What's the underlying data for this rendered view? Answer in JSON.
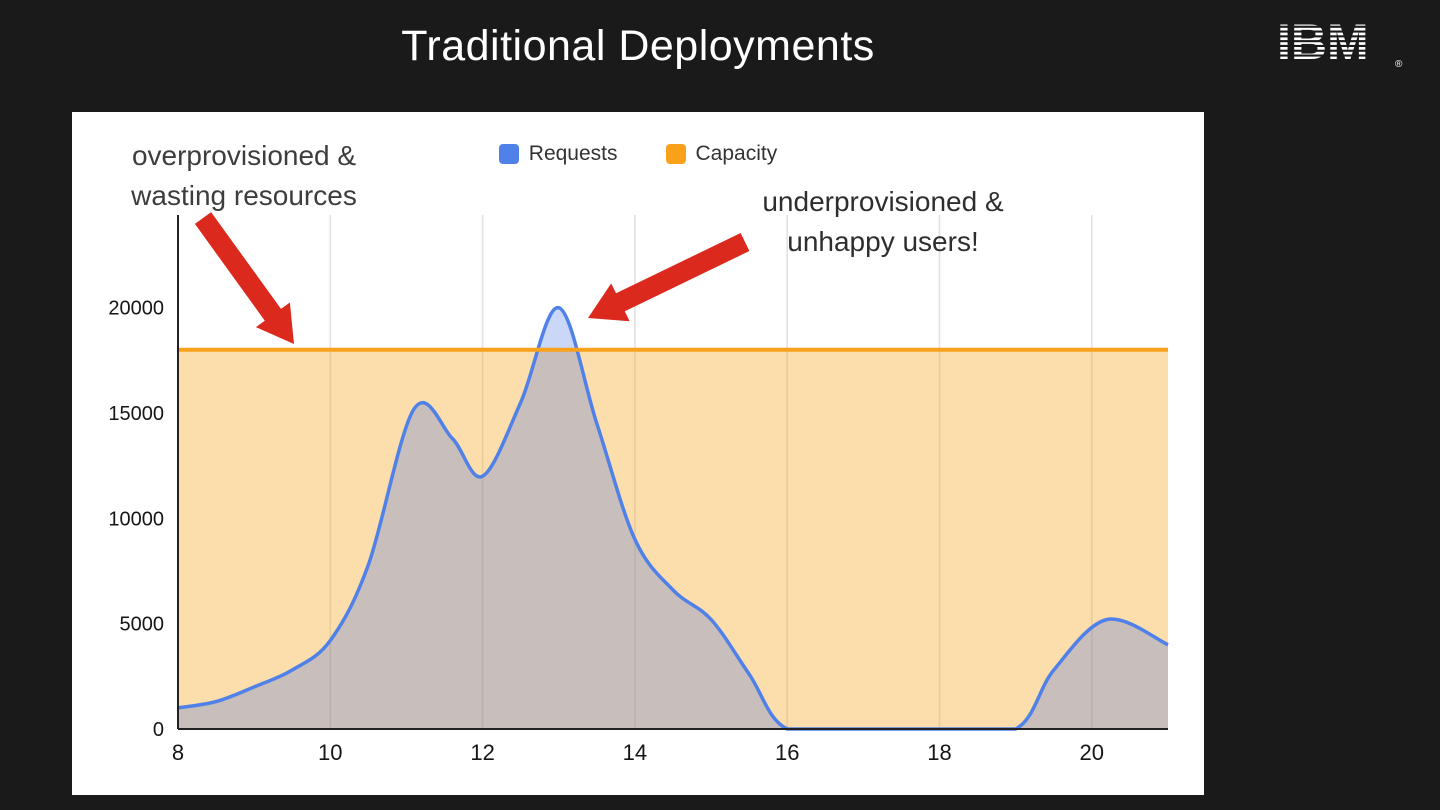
{
  "slide": {
    "title": "Traditional Deployments",
    "brand": "IBM",
    "brand_mark": "®"
  },
  "colors": {
    "slide_bg": "#1a1a1a",
    "panel_bg": "#ffffff",
    "arrow": "#dc291e",
    "requests_blue": "#4f81e8",
    "capacity_orange": "#f9a11b"
  },
  "chart_data": {
    "type": "area",
    "legend_position": "top",
    "grid": "vertical",
    "x_range": [
      8,
      21
    ],
    "y_range": [
      0,
      24400
    ],
    "x_ticks": [
      8,
      10,
      12,
      14,
      16,
      18,
      20
    ],
    "y_ticks": [
      0,
      5000,
      10000,
      15000,
      20000
    ],
    "series": [
      {
        "name": "Requests",
        "type": "area",
        "color": "#4f81e8",
        "fill": "rgba(78,121,230,0.30)",
        "x": [
          8,
          8.5,
          9,
          9.5,
          10,
          10.5,
          11.1,
          11.6,
          12,
          12.5,
          13,
          13.5,
          14,
          14.5,
          15,
          15.5,
          16,
          17,
          18,
          19,
          19.5,
          20.2,
          21
        ],
        "values": [
          1000,
          1300,
          2000,
          2800,
          4200,
          7800,
          15200,
          13800,
          12000,
          15500,
          20000,
          14500,
          9000,
          6600,
          5200,
          2600,
          0,
          0,
          0,
          0,
          2800,
          5200,
          4000
        ]
      },
      {
        "name": "Capacity",
        "type": "line",
        "color": "#f9a11b",
        "fill": "rgba(247,166,37,0.38)",
        "value": 18000
      }
    ],
    "annotations": [
      {
        "id": "overprovisioned",
        "line1": "overprovisioned &",
        "line2": "wasting resources",
        "points_to": "capacity line"
      },
      {
        "id": "underprovisioned",
        "line1": "underprovisioned &",
        "line2": "unhappy users!",
        "points_to": "requests peak at 13"
      }
    ]
  }
}
